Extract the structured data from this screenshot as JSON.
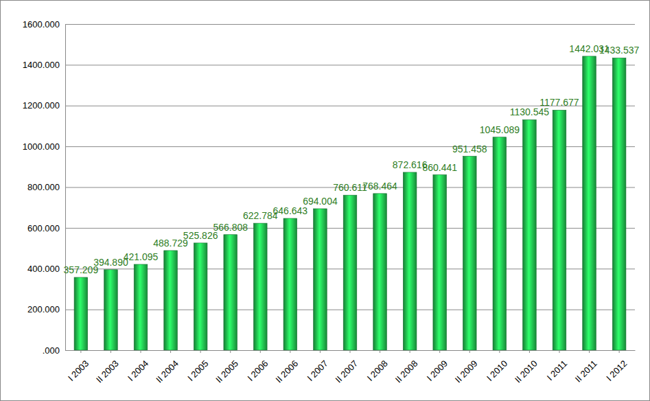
{
  "chart_data": {
    "type": "bar",
    "categories": [
      "I 2003",
      "II 2003",
      "I 2004",
      "II 2004",
      "I 2005",
      "II 2005",
      "I 2006",
      "II 2006",
      "I 2007",
      "II 2007",
      "I 2008",
      "II 2008",
      "I 2009",
      "II 2009",
      "I 2010",
      "II 2010",
      "I 2011",
      "II 2011",
      "I 2012"
    ],
    "values": [
      357.209,
      394.89,
      421.095,
      488.729,
      525.826,
      566.808,
      622.784,
      646.643,
      694.004,
      760.611,
      768.464,
      872.616,
      860.441,
      951.458,
      1045.089,
      1130.545,
      1177.677,
      1442.031,
      1433.537
    ],
    "value_labels": [
      "357.209",
      "394.890",
      "421.095",
      "488.729",
      "525.826",
      "566.808",
      "622.784",
      "646.643",
      "694.004",
      "760.611",
      "768.464",
      "872.616",
      "860.441",
      "951.458",
      "1045.089",
      "1130.545",
      "1177.677",
      "1442.031",
      "1433.537"
    ],
    "data_labels": true,
    "color": "#1fae48",
    "ylim": [
      0,
      1600
    ],
    "yticks": [
      {
        "value": 0,
        "label": ".000"
      },
      {
        "value": 200,
        "label": "200.000"
      },
      {
        "value": 400,
        "label": "400.000"
      },
      {
        "value": 600,
        "label": "600.000"
      },
      {
        "value": 800,
        "label": "800.000"
      },
      {
        "value": 1000,
        "label": "1000.000"
      },
      {
        "value": 1200,
        "label": "1200.000"
      },
      {
        "value": 1400,
        "label": "1400.000"
      },
      {
        "value": 1600,
        "label": "1600.000"
      }
    ],
    "grid": true
  }
}
